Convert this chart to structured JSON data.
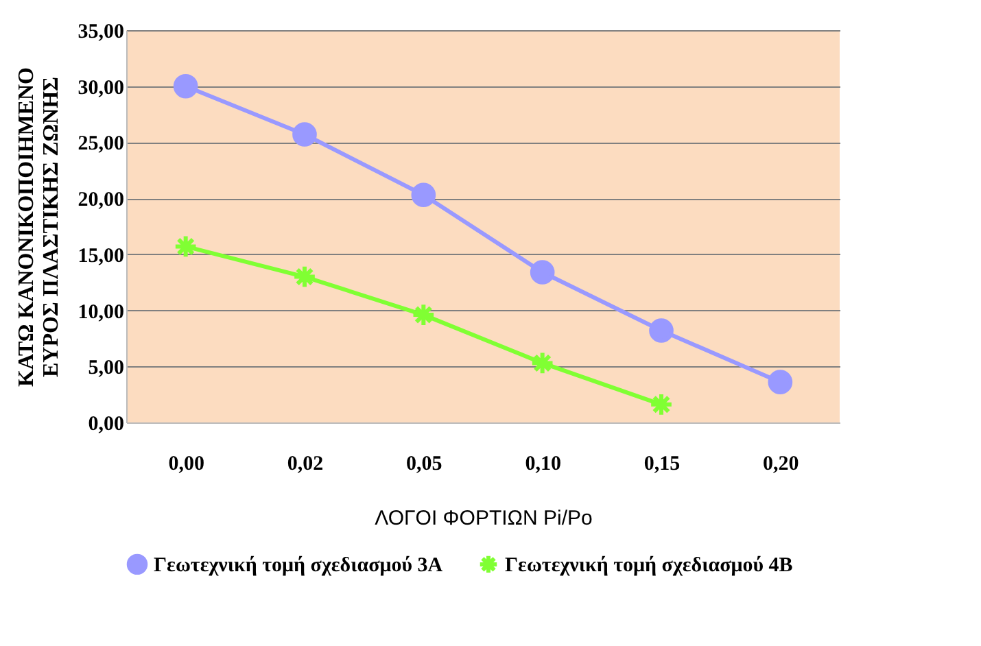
{
  "chart_data": {
    "type": "line",
    "xlabel": "ΛΟΓΟΙ ΦΟΡΤΙΩΝ Pi/Po",
    "ylabel": "ΚΑΤΩ ΚΑΝΟΝΙΚΟΠΟΙΗΜΕΝΟ\nΕΥΡΟΣ ΠΛΑΣΤΙΚΗΣ ΖΩΝΗΣ",
    "categories": [
      "0,00",
      "0,02",
      "0,05",
      "0,10",
      "0,15",
      "0,20"
    ],
    "series": [
      {
        "name": "Γεωτεχνική τομή σχεδιασμού 3Α",
        "color": "#9999ff",
        "marker": "circle",
        "values": [
          30.0,
          25.7,
          20.3,
          13.4,
          8.2,
          3.6
        ]
      },
      {
        "name": "Γεωτεχνική τομή σχεδιασμού 4Β",
        "color": "#80ff33",
        "marker": "cross",
        "values": [
          15.7,
          13.0,
          9.6,
          5.3,
          1.6,
          null
        ]
      }
    ],
    "ylim": [
      0,
      35
    ],
    "yticks": [
      {
        "value": 0,
        "label": "0,00"
      },
      {
        "value": 5,
        "label": "5,00"
      },
      {
        "value": 10,
        "label": "10,00"
      },
      {
        "value": 15,
        "label": "15,00"
      },
      {
        "value": 20,
        "label": "20,00"
      },
      {
        "value": 25,
        "label": "25,00"
      },
      {
        "value": 30,
        "label": "30,00"
      },
      {
        "value": 35,
        "label": "35,00"
      }
    ],
    "grid": "y",
    "legend": "bottom"
  }
}
